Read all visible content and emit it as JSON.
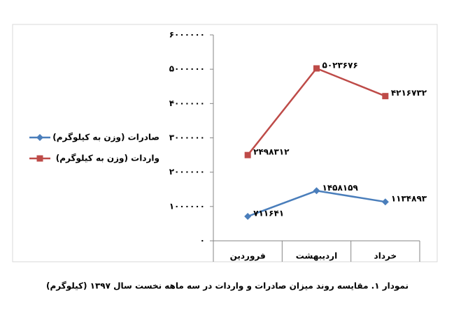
{
  "chart_data": {
    "type": "line",
    "caption": "نمودار ۱. مقایسه روند میزان صادرات و واردات در سه ماهه نخست سال ۱۳۹۷ (کیلوگرم)",
    "categories": [
      "فروردین",
      "اردیبهشت",
      "خرداد"
    ],
    "series": [
      {
        "name": "صادرات (وزن به کیلوگرم)",
        "color": "#4a7ebb",
        "marker": "diamond",
        "values": [
          711641,
          1458159,
          1134893
        ],
        "value_labels": [
          "۷۱۱۶۴۱",
          "۱۴۵۸۱۵۹",
          "۱۱۳۴۸۹۳"
        ]
      },
      {
        "name": "واردات (وزن به کیلوگرم)",
        "color": "#be4b48",
        "marker": "square",
        "values": [
          2498312,
          5023676,
          4216732
        ],
        "value_labels": [
          "۲۴۹۸۳۱۲",
          "۵۰۲۳۶۷۶",
          "۴۲۱۶۷۳۲"
        ]
      }
    ],
    "ylim": [
      0,
      6000000
    ],
    "yticks": [
      {
        "value": 0,
        "label": "۰"
      },
      {
        "value": 1000000,
        "label": "۱۰۰۰۰۰۰"
      },
      {
        "value": 2000000,
        "label": "۲۰۰۰۰۰۰"
      },
      {
        "value": 3000000,
        "label": "۳۰۰۰۰۰۰"
      },
      {
        "value": 4000000,
        "label": "۴۰۰۰۰۰۰"
      },
      {
        "value": 5000000,
        "label": "۵۰۰۰۰۰۰"
      },
      {
        "value": 6000000,
        "label": "۶۰۰۰۰۰۰"
      }
    ],
    "legend": "left"
  }
}
